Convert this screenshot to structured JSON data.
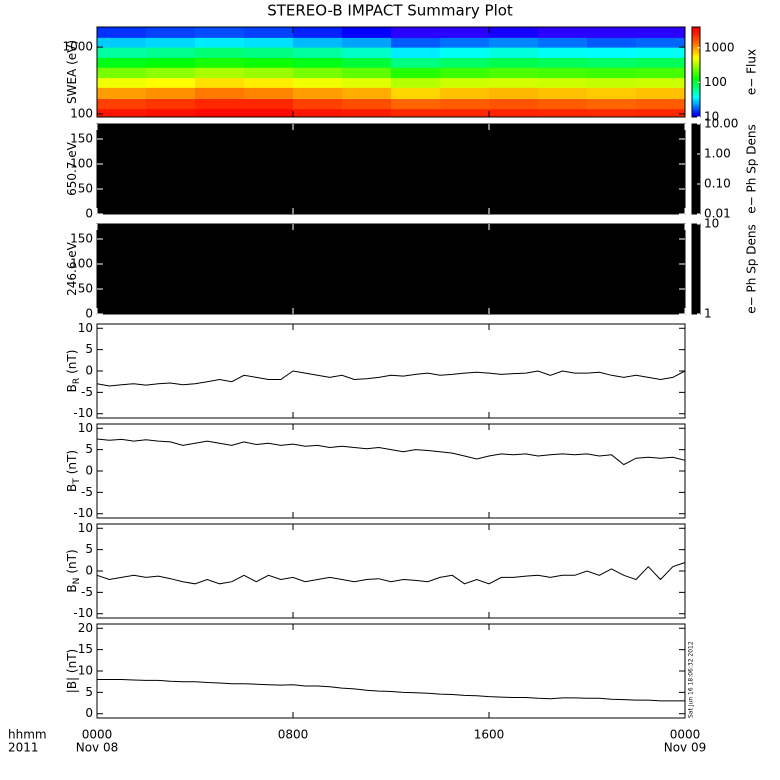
{
  "title": "STEREO-B IMPACT Summary Plot",
  "footer": {
    "hhmm": "hhmm",
    "year": "2011",
    "start_date": "Nov 08",
    "end_date": "Nov 09"
  },
  "timestamp": "Sat Jun 16 18:06:32 2012",
  "x_axis": {
    "xlim": [
      0,
      24
    ],
    "xticks": [
      {
        "value": 0,
        "label": "0000"
      },
      {
        "value": 8,
        "label": "0800"
      },
      {
        "value": 16,
        "label": "1600"
      },
      {
        "value": 24,
        "label": "0000"
      }
    ],
    "time": [
      0,
      0.5,
      1,
      1.5,
      2,
      2.5,
      3,
      3.5,
      4,
      4.5,
      5,
      5.5,
      6,
      6.5,
      7,
      7.5,
      8,
      8.5,
      9,
      9.5,
      10,
      10.5,
      11,
      11.5,
      12,
      12.5,
      13,
      13.5,
      14,
      14.5,
      15,
      15.5,
      16,
      16.5,
      17,
      17.5,
      18,
      18.5,
      19,
      19.5,
      20,
      20.5,
      21,
      21.5,
      22,
      22.5,
      23,
      23.5,
      24
    ]
  },
  "chart_data": [
    {
      "type": "spectrogram",
      "ylabel": "SWEA (eV)",
      "log": true,
      "ylim": [
        90,
        2000
      ],
      "yticks": [
        100,
        1000
      ],
      "xbins": [
        0,
        2,
        4,
        6,
        8,
        10,
        12,
        14,
        16,
        18,
        20,
        22,
        24
      ],
      "ybins": [
        90,
        120,
        170,
        250,
        350,
        500,
        700,
        1000,
        1400,
        2000
      ],
      "z": [
        [
          3000,
          3200,
          3500,
          3500,
          3000,
          2800,
          2500,
          2500,
          2600,
          2500,
          2400,
          2500
        ],
        [
          2000,
          2200,
          2500,
          2500,
          2000,
          1800,
          1500,
          1600,
          1700,
          1600,
          1500,
          1600
        ],
        [
          1000,
          1100,
          1300,
          1200,
          1000,
          900,
          700,
          800,
          850,
          800,
          750,
          800
        ],
        [
          500,
          550,
          650,
          600,
          500,
          450,
          350,
          400,
          420,
          400,
          380,
          400
        ],
        [
          250,
          280,
          330,
          300,
          250,
          220,
          160,
          180,
          200,
          190,
          180,
          190
        ],
        [
          120,
          130,
          150,
          140,
          120,
          100,
          70,
          80,
          90,
          85,
          80,
          85
        ],
        [
          60,
          65,
          75,
          70,
          60,
          50,
          35,
          40,
          45,
          40,
          38,
          40
        ],
        [
          30,
          32,
          35,
          33,
          28,
          25,
          18,
          20,
          22,
          20,
          18,
          19
        ],
        [
          15,
          16,
          17,
          16,
          14,
          12,
          10,
          10,
          11,
          10,
          9,
          10
        ]
      ],
      "colorbar_label": "e− Flux",
      "zlim": [
        10,
        4000
      ],
      "zticks": [
        10,
        100,
        1000
      ]
    },
    {
      "type": "spectrogram",
      "ylabel": "650.7 eV",
      "ylim": [
        0,
        180
      ],
      "yticks": [
        0,
        50,
        100,
        150
      ],
      "background": "#000000",
      "colorbar_label": "e− Ph Sp Dens",
      "zlim": [
        0.01,
        10
      ],
      "zticks": [
        {
          "value": 10,
          "label": "10.00"
        },
        {
          "value": 1,
          "label": "1.00"
        },
        {
          "value": 0.1,
          "label": "0.10"
        },
        {
          "value": 0.01,
          "label": "0.01"
        }
      ]
    },
    {
      "type": "spectrogram",
      "ylabel": "246.6 eV",
      "ylim": [
        0,
        180
      ],
      "yticks": [
        0,
        50,
        100,
        150
      ],
      "background": "#000000",
      "colorbar_label": "e− Ph Sp Dens",
      "zlim": [
        1,
        10
      ],
      "zticks": [
        10,
        1
      ]
    },
    {
      "type": "line",
      "ylabel": "B",
      "ylabel_sub": "R",
      "ylabel_unit": "(nT)",
      "ylim": [
        -11,
        11
      ],
      "yticks": [
        -10,
        -5,
        0,
        5,
        10
      ],
      "color": "#000000",
      "values": [
        -3,
        -3.5,
        -3.2,
        -3,
        -3.3,
        -3,
        -2.8,
        -3.2,
        -3,
        -2.5,
        -2,
        -2.5,
        -1,
        -1.5,
        -2,
        -2,
        0,
        -0.5,
        -1,
        -1.5,
        -1,
        -2,
        -1.8,
        -1.5,
        -1,
        -1.2,
        -0.8,
        -0.5,
        -1,
        -0.8,
        -0.5,
        -0.3,
        -0.5,
        -0.8,
        -0.6,
        -0.5,
        0,
        -1,
        0,
        -0.5,
        -0.5,
        -0.3,
        -1,
        -1.5,
        -1,
        -1.5,
        -2,
        -1.5,
        0
      ]
    },
    {
      "type": "line",
      "ylabel": "B",
      "ylabel_sub": "T",
      "ylabel_unit": "(nT)",
      "ylim": [
        -11,
        11
      ],
      "yticks": [
        -10,
        -5,
        0,
        5,
        10
      ],
      "color": "#000000",
      "values": [
        7.5,
        7.2,
        7.4,
        7,
        7.3,
        7,
        6.8,
        6,
        6.5,
        7,
        6.5,
        6,
        6.8,
        6.2,
        6.5,
        6,
        6.3,
        5.8,
        6,
        5.5,
        5.8,
        5.5,
        5.2,
        5.5,
        5,
        4.5,
        5,
        4.8,
        4.5,
        4.2,
        3.5,
        2.8,
        3.5,
        4,
        3.8,
        4,
        3.5,
        3.8,
        4,
        3.8,
        4,
        3.5,
        3.8,
        1.5,
        3,
        3.2,
        3,
        3.2,
        2.5
      ]
    },
    {
      "type": "line",
      "ylabel": "B",
      "ylabel_sub": "N",
      "ylabel_unit": "(nT)",
      "ylim": [
        -11,
        11
      ],
      "yticks": [
        -10,
        -5,
        0,
        5,
        10
      ],
      "color": "#000000",
      "values": [
        -1,
        -2,
        -1.5,
        -1,
        -1.5,
        -1.2,
        -1.8,
        -2.5,
        -3,
        -2,
        -3,
        -2.5,
        -1,
        -2.5,
        -1,
        -2,
        -1.5,
        -2.5,
        -2,
        -1.5,
        -2,
        -2.5,
        -2,
        -1.8,
        -2.5,
        -2,
        -2.2,
        -2.5,
        -1.5,
        -1,
        -3,
        -2,
        -3,
        -1.5,
        -1.5,
        -1.2,
        -1,
        -1.5,
        -1,
        -1,
        0,
        -1,
        0.5,
        -1,
        -2,
        1,
        -2,
        1,
        2
      ]
    },
    {
      "type": "line",
      "ylabel": "|B| (nT)",
      "ylim": [
        -1,
        21
      ],
      "yticks": [
        0,
        5,
        10,
        15,
        20
      ],
      "color": "#000000",
      "values": [
        8,
        8,
        8,
        7.9,
        7.8,
        7.8,
        7.6,
        7.5,
        7.5,
        7.3,
        7.2,
        7,
        7,
        6.9,
        6.8,
        6.7,
        6.8,
        6.5,
        6.5,
        6.3,
        6,
        5.8,
        5.5,
        5.3,
        5.2,
        5,
        4.9,
        4.8,
        4.6,
        4.5,
        4.3,
        4.2,
        4,
        3.9,
        3.8,
        3.8,
        3.6,
        3.5,
        3.7,
        3.7,
        3.6,
        3.6,
        3.4,
        3.3,
        3.2,
        3.2,
        3,
        3,
        3
      ]
    }
  ]
}
